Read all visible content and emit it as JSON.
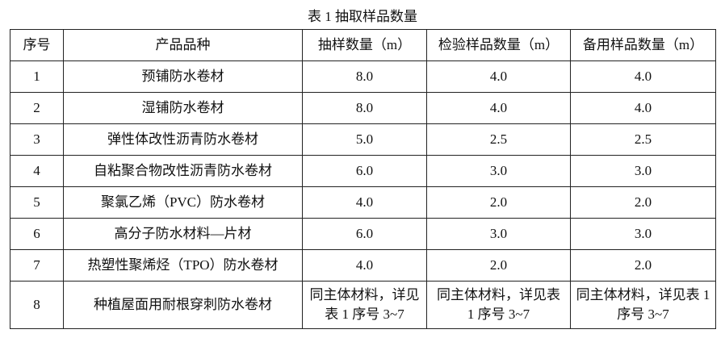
{
  "title": "表 1  抽取样品数量",
  "table": {
    "header": [
      "序号",
      "产品品种",
      "抽样数量（m）",
      "检验样品数量（m）",
      "备用样品数量（m）"
    ],
    "rows": [
      [
        "1",
        "预铺防水卷材",
        "8.0",
        "4.0",
        "4.0"
      ],
      [
        "2",
        "湿铺防水卷材",
        "8.0",
        "4.0",
        "4.0"
      ],
      [
        "3",
        "弹性体改性沥青防水卷材",
        "5.0",
        "2.5",
        "2.5"
      ],
      [
        "4",
        "自粘聚合物改性沥青防水卷材",
        "6.0",
        "3.0",
        "3.0"
      ],
      [
        "5",
        "聚氯乙烯（PVC）防水卷材",
        "4.0",
        "2.0",
        "2.0"
      ],
      [
        "6",
        "高分子防水材料—片材",
        "6.0",
        "3.0",
        "3.0"
      ],
      [
        "7",
        "热塑性聚烯烃（TPO）防水卷材",
        "4.0",
        "2.0",
        "2.0"
      ],
      [
        "8",
        "种植屋面用耐根穿刺防水卷材",
        "同主体材料，详见表 1 序号 3~7",
        "同主体材料，详见表 1 序号 3~7",
        "同主体材料，详见表 1 序号 3~7"
      ]
    ]
  }
}
